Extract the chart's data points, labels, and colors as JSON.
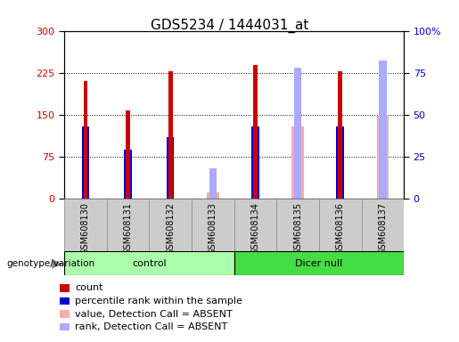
{
  "title": "GDS5234 / 1444031_at",
  "samples": [
    "GSM608130",
    "GSM608131",
    "GSM608132",
    "GSM608133",
    "GSM608134",
    "GSM608135",
    "GSM608136",
    "GSM608137"
  ],
  "count_values": [
    210,
    158,
    228,
    0,
    238,
    0,
    228,
    0
  ],
  "rank_values": [
    128,
    88,
    110,
    0,
    128,
    0,
    128,
    0
  ],
  "absent_value_values": [
    0,
    0,
    0,
    10,
    0,
    128,
    0,
    148
  ],
  "absent_rank_values": [
    0,
    0,
    0,
    18,
    0,
    78,
    0,
    82
  ],
  "left_ylim": [
    0,
    300
  ],
  "right_ylim": [
    0,
    100
  ],
  "left_yticks": [
    0,
    75,
    150,
    225,
    300
  ],
  "right_yticks": [
    0,
    25,
    50,
    75,
    100
  ],
  "right_yticklabels": [
    "0",
    "25",
    "50",
    "75",
    "100%"
  ],
  "color_count": "#cc0000",
  "color_rank": "#0000cc",
  "color_absent_value": "#ffaaaa",
  "color_absent_rank": "#aaaaff",
  "group_control_color": "#aaffaa",
  "group_dicer_color": "#44dd44",
  "title_fontsize": 11,
  "tick_fontsize": 8,
  "label_fontsize": 7,
  "legend_fontsize": 8
}
